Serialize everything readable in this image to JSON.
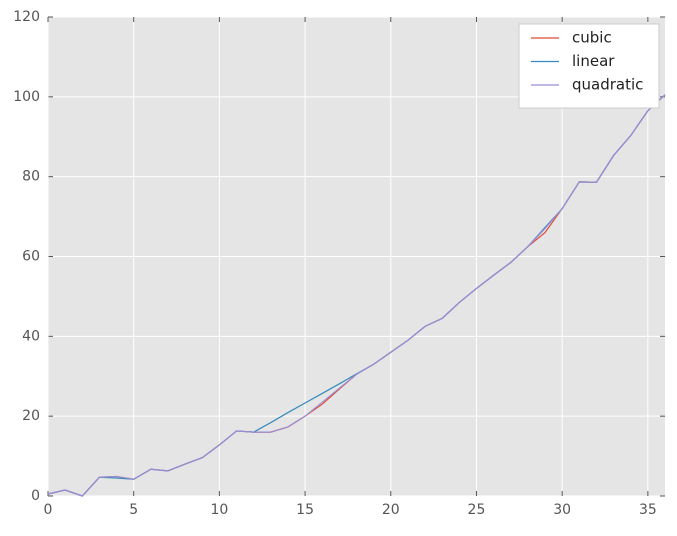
{
  "chart_data": {
    "type": "line",
    "x": [
      0,
      1,
      2,
      3,
      4,
      5,
      6,
      7,
      8,
      9,
      10,
      11,
      12,
      13,
      14,
      15,
      16,
      17,
      18,
      19,
      20,
      21,
      22,
      23,
      24,
      25,
      26,
      27,
      28,
      29,
      30,
      31,
      32,
      33,
      34,
      35,
      36
    ],
    "series": [
      {
        "name": "cubic",
        "color": "#E24A33",
        "values": [
          0.5,
          1.5,
          0,
          4.7,
          4.9,
          4.2,
          6.7,
          6.3,
          8,
          9.6,
          12.8,
          16.3,
          16,
          16,
          17.3,
          20,
          23,
          26.8,
          30.5,
          33,
          36,
          39,
          42.5,
          44.5,
          48.5,
          52,
          55.3,
          58.5,
          62.5,
          66,
          72,
          78.7,
          78.6,
          85.3,
          90.3,
          96.5,
          100.5
        ]
      },
      {
        "name": "linear",
        "color": "#348ABD",
        "values": [
          0.5,
          1.5,
          0,
          4.7,
          4.5,
          4.2,
          6.7,
          6.3,
          8,
          9.6,
          12.8,
          16.3,
          16,
          18.4,
          20.9,
          23.3,
          25.7,
          28.1,
          30.6,
          33,
          36,
          39,
          42.5,
          44.5,
          48.5,
          52,
          55.3,
          58.5,
          62.5,
          67.3,
          72,
          78.7,
          78.6,
          85.3,
          90.3,
          96.5,
          100.5
        ]
      },
      {
        "name": "quadratic",
        "color": "#988ED5",
        "values": [
          0.5,
          1.5,
          0,
          4.7,
          4.9,
          4.2,
          6.7,
          6.3,
          8,
          9.6,
          12.8,
          16.3,
          16,
          16,
          17.3,
          20,
          23.5,
          27,
          30.5,
          33,
          36,
          39,
          42.5,
          44.5,
          48.5,
          52,
          55.3,
          58.5,
          62.5,
          67,
          72,
          78.7,
          78.6,
          85.3,
          90.3,
          96.5,
          100.5
        ]
      }
    ],
    "xlim": [
      0,
      36
    ],
    "xticks": [
      0,
      5,
      10,
      15,
      20,
      25,
      30,
      35
    ],
    "ylim": [
      0,
      120
    ],
    "yticks": [
      0,
      20,
      40,
      60,
      80,
      100,
      120
    ],
    "grid": true,
    "legend": "upper right"
  }
}
